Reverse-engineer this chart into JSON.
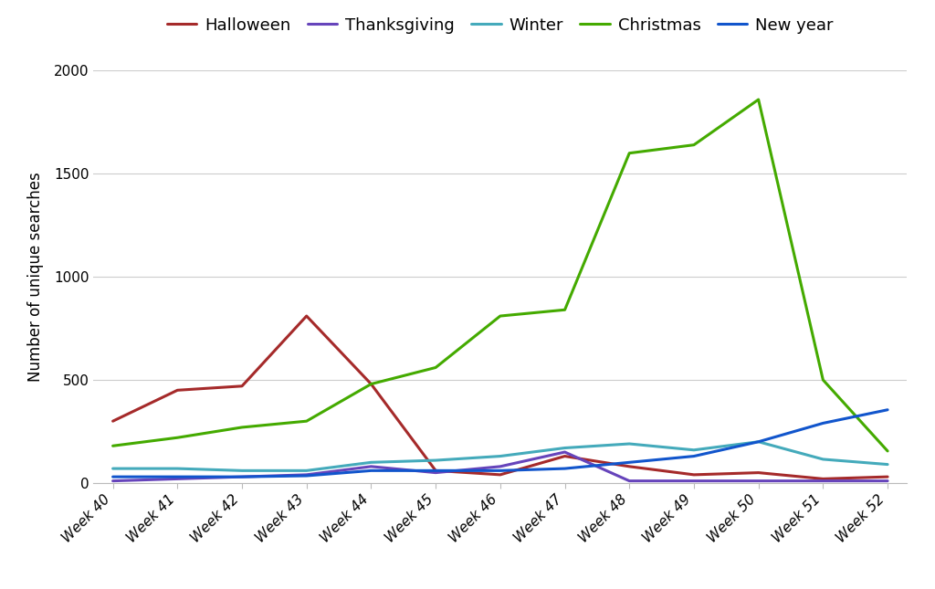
{
  "weeks": [
    "Week 40",
    "Week 41",
    "Week 42",
    "Week 43",
    "Week 44",
    "Week 45",
    "Week 46",
    "Week 47",
    "Week 48",
    "Week 49",
    "Week 50",
    "Week 51",
    "Week 52"
  ],
  "series": {
    "Halloween": {
      "values": [
        300,
        450,
        470,
        810,
        480,
        60,
        40,
        130,
        80,
        40,
        50,
        20,
        30
      ],
      "color": "#a52a2a"
    },
    "Thanksgiving": {
      "values": [
        10,
        20,
        30,
        40,
        80,
        50,
        80,
        150,
        10,
        10,
        10,
        10,
        10
      ],
      "color": "#6644bb"
    },
    "Winter": {
      "values": [
        70,
        70,
        60,
        60,
        100,
        110,
        130,
        170,
        190,
        160,
        200,
        115,
        90
      ],
      "color": "#44aabb"
    },
    "Christmas": {
      "values": [
        180,
        220,
        270,
        300,
        480,
        560,
        810,
        840,
        1600,
        1640,
        1860,
        500,
        155
      ],
      "color": "#44aa00"
    },
    "New year": {
      "values": [
        30,
        30,
        30,
        35,
        60,
        60,
        60,
        70,
        100,
        130,
        200,
        290,
        355
      ],
      "color": "#1155cc"
    }
  },
  "ylabel": "Number of unique searches",
  "ylim": [
    0,
    2000
  ],
  "yticks": [
    0,
    500,
    1000,
    1500,
    2000
  ],
  "background_color": "#ffffff",
  "grid_color": "#cccccc",
  "legend_fontsize": 13,
  "label_fontsize": 12,
  "tick_fontsize": 11,
  "legend_order": [
    "Halloween",
    "Thanksgiving",
    "Winter",
    "Christmas",
    "New year"
  ]
}
